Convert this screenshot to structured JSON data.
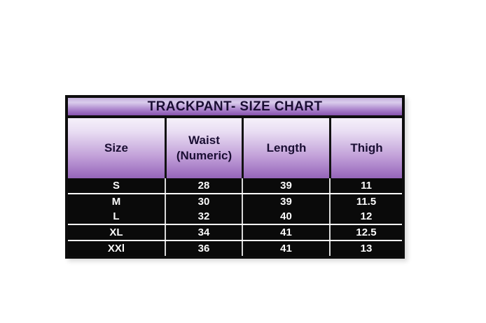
{
  "chart_data": {
    "type": "table",
    "title": "TRACKPANT- SIZE CHART",
    "columns": [
      "Size",
      "Waist (Numeric)",
      "Length",
      "Thigh"
    ],
    "rows": [
      [
        "S",
        "28",
        "39",
        "11"
      ],
      [
        "M",
        "30",
        "39",
        "11.5"
      ],
      [
        "L",
        "32",
        "40",
        "12"
      ],
      [
        "XL",
        "34",
        "41",
        "12.5"
      ],
      [
        "XXl",
        "36",
        "41",
        "13"
      ]
    ],
    "layout": {
      "title_position": "top",
      "header_rows": 1,
      "grid": "on"
    }
  },
  "header_display": {
    "waist_line1": "Waist",
    "waist_line2": "(Numeric)"
  },
  "colors": {
    "outer_border": "#0d0d0d",
    "title_gradient_light": "#dacdec",
    "title_gradient_dark": "#8753ae",
    "header_gradient_top": "#f5f1fa",
    "header_gradient_bottom": "#9565ba",
    "heading_text": "#1a0e33",
    "row_background": "#0a0a0a",
    "row_text": "#ffffff",
    "row_separator": "#ffffff"
  }
}
